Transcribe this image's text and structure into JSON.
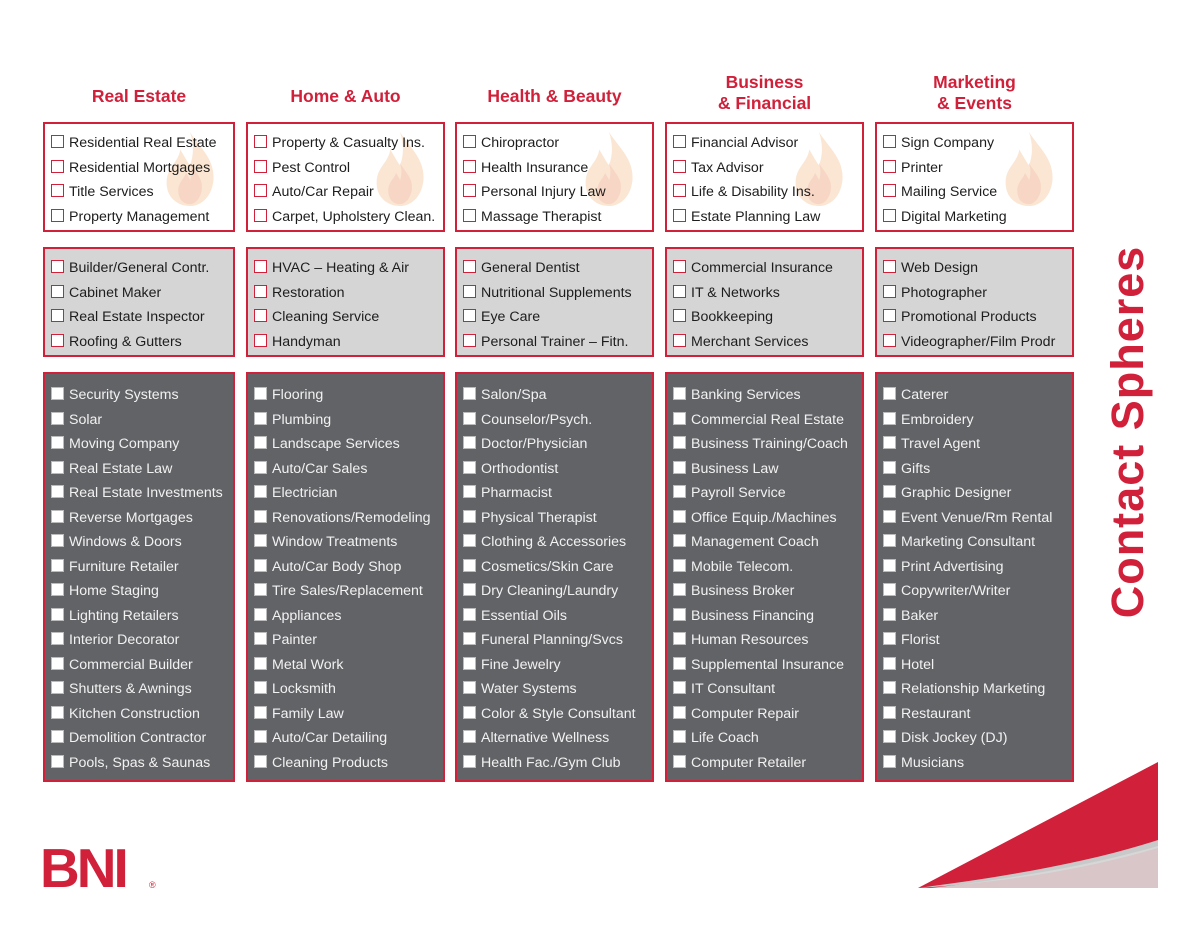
{
  "title": "Contact Spheres",
  "logo": "BNI",
  "logo_mark": "®",
  "accent_color": "#d0203a",
  "columns": [
    {
      "header": [
        "Real Estate"
      ],
      "groups": [
        [
          "Residential Real Estate",
          "Residential Mortgages",
          "Title Services",
          "Property Management"
        ],
        [
          "Builder/General Contr.",
          "Cabinet Maker",
          "Real Estate Inspector",
          "Roofing & Gutters"
        ],
        [
          "Security Systems",
          "Solar",
          "Moving Company",
          "Real Estate Law",
          "Real Estate Investments",
          "Reverse Mortgages",
          "Windows & Doors",
          "Furniture Retailer",
          "Home Staging",
          "Lighting Retailers",
          "Interior Decorator",
          "Commercial Builder",
          "Shutters & Awnings",
          "Kitchen Construction",
          "Demolition Contractor",
          "Pools, Spas & Saunas"
        ]
      ]
    },
    {
      "header": [
        "Home & Auto"
      ],
      "groups": [
        [
          "Property & Casualty Ins.",
          "Pest Control",
          "Auto/Car Repair",
          "Carpet, Upholstery Clean."
        ],
        [
          "HVAC – Heating & Air",
          "Restoration",
          "Cleaning Service",
          "Handyman"
        ],
        [
          "Flooring",
          "Plumbing",
          "Landscape Services",
          "Auto/Car Sales",
          "Electrician",
          "Renovations/Remodeling",
          "Window Treatments",
          "Auto/Car Body Shop",
          "Tire Sales/Replacement",
          "Appliances",
          "Painter",
          "Metal Work",
          "Locksmith",
          "Family Law",
          "Auto/Car Detailing",
          "Cleaning Products"
        ]
      ]
    },
    {
      "header": [
        "Health & Beauty"
      ],
      "groups": [
        [
          "Chiropractor",
          "Health Insurance",
          "Personal Injury Law",
          "Massage Therapist"
        ],
        [
          "General Dentist",
          "Nutritional Supplements",
          "Eye Care",
          "Personal Trainer – Fitn."
        ],
        [
          "Salon/Spa",
          "Counselor/Psych.",
          "Doctor/Physician",
          "Orthodontist",
          "Pharmacist",
          "Physical Therapist",
          "Clothing & Accessories",
          "Cosmetics/Skin Care",
          "Dry Cleaning/Laundry",
          "Essential Oils",
          "Funeral Planning/Svcs",
          "Fine Jewelry",
          "Water Systems",
          "Color & Style Consultant",
          "Alternative Wellness",
          "Health Fac./Gym Club"
        ]
      ]
    },
    {
      "header": [
        "Business",
        "& Financial"
      ],
      "groups": [
        [
          "Financial Advisor",
          "Tax Advisor",
          "Life & Disability Ins.",
          "Estate Planning Law"
        ],
        [
          "Commercial Insurance",
          "IT & Networks",
          "Bookkeeping",
          "Merchant Services"
        ],
        [
          "Banking Services",
          "Commercial Real Estate",
          "Business Training/Coach",
          "Business Law",
          "Payroll Service",
          "Office Equip./Machines",
          "Management Coach",
          "Mobile Telecom.",
          "Business Broker",
          "Business Financing",
          "Human Resources",
          "Supplemental Insurance",
          "IT Consultant",
          "Computer Repair",
          "Life Coach",
          "Computer Retailer"
        ]
      ]
    },
    {
      "header": [
        "Marketing",
        "& Events"
      ],
      "groups": [
        [
          "Sign Company",
          "Printer",
          "Mailing Service",
          "Digital Marketing"
        ],
        [
          "Web Design",
          "Photographer",
          "Promotional Products",
          "Videographer/Film Prodr"
        ],
        [
          "Caterer",
          "Embroidery",
          "Travel Agent",
          "Gifts",
          "Graphic Designer",
          "Event Venue/Rm Rental",
          "Marketing Consultant",
          "Print Advertising",
          "Copywriter/Writer",
          "Baker",
          "Florist",
          "Hotel",
          "Relationship Marketing",
          "Restaurant",
          "Disk Jockey (DJ)",
          "Musicians"
        ]
      ]
    }
  ]
}
